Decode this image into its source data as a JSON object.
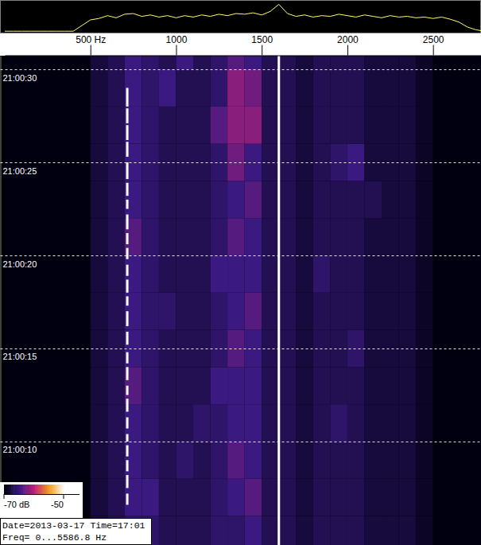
{
  "chart_data": {
    "type": "spectrogram",
    "xlim": [
      0,
      2780
    ],
    "xticks": [
      {
        "value": 500,
        "label": "500 Hz"
      },
      1000,
      1500,
      2000,
      2500
    ],
    "ylim": [
      4.44,
      30.73
    ],
    "yticks": [
      {
        "value": 10,
        "label": "21:00:10"
      },
      {
        "value": 15,
        "label": "21:00:15"
      },
      {
        "value": 20,
        "label": "21:00:20"
      },
      {
        "value": 25,
        "label": "21:00:25"
      },
      {
        "value": 30,
        "label": "21:00:30"
      }
    ],
    "grid": true,
    "colorbar": {
      "range": [
        -70,
        -50
      ],
      "ticks": [
        {
          "value": -70,
          "label": "-70 dB"
        },
        -50
      ]
    },
    "annotations": [
      "Date=2013-03-17 Time=17:01",
      "Freq= 0...5586.8 Hz"
    ],
    "spectrum": {
      "color": "#ffff60",
      "ylim": [
        -90,
        -45
      ],
      "x": [
        0,
        50,
        100,
        150,
        200,
        250,
        300,
        350,
        400,
        450,
        500,
        550,
        600,
        650,
        700,
        750,
        800,
        850,
        900,
        950,
        1000,
        1050,
        1100,
        1150,
        1200,
        1250,
        1300,
        1350,
        1400,
        1450,
        1500,
        1550,
        1600,
        1650,
        1700,
        1750,
        1800,
        1850,
        1900,
        1950,
        2000,
        2050,
        2100,
        2150,
        2200,
        2250,
        2300,
        2350,
        2400,
        2450,
        2500,
        2550,
        2600,
        2650,
        2700,
        2750,
        2800
      ],
      "values": [
        -88,
        -88,
        -88,
        -88,
        -88,
        -88,
        -88,
        -88,
        -88,
        -80,
        -72,
        -70,
        -66,
        -69,
        -64,
        -63,
        -67,
        -65,
        -68,
        -66,
        -69,
        -66,
        -68,
        -65,
        -67,
        -64,
        -66,
        -63,
        -64,
        -62,
        -65,
        -60,
        -50,
        -63,
        -67,
        -65,
        -68,
        -66,
        -67,
        -64,
        -66,
        -68,
        -65,
        -67,
        -69,
        -66,
        -68,
        -67,
        -69,
        -68,
        -70,
        -68,
        -71,
        -75,
        -82,
        -86,
        -88
      ]
    },
    "cells": {
      "frequency_edges": [
        0,
        100,
        200,
        300,
        400,
        500,
        600,
        700,
        800,
        900,
        1000,
        1100,
        1200,
        1300,
        1400,
        1500,
        1600,
        1700,
        1800,
        1900,
        2000,
        2100,
        2200,
        2300,
        2400,
        2500,
        2600,
        2700,
        2800
      ],
      "time_edges": [
        4,
        6,
        8,
        10,
        12,
        14,
        16,
        18,
        20,
        22,
        24,
        26,
        28,
        30,
        32
      ],
      "values": [
        [
          -85,
          -85,
          -85,
          -85,
          -72,
          -68,
          -67,
          -66,
          -66,
          -67,
          -67,
          -67,
          -66,
          -66,
          -65,
          -67,
          -67,
          -68,
          -67,
          -67,
          -67,
          -68,
          -68,
          -68,
          -69,
          -70,
          -75,
          -85
        ],
        [
          -85,
          -85,
          -85,
          -85,
          -72,
          -68,
          -67,
          -65,
          -65,
          -67,
          -67,
          -67,
          -66,
          -65,
          -64,
          -67,
          -67,
          -68,
          -67,
          -67,
          -67,
          -68,
          -68,
          -68,
          -69,
          -70,
          -75,
          -85
        ],
        [
          -85,
          -85,
          -85,
          -85,
          -72,
          -68,
          -67,
          -65,
          -66,
          -67,
          -66,
          -67,
          -66,
          -64,
          -65,
          -67,
          -67,
          -68,
          -67,
          -67,
          -67,
          -68,
          -68,
          -68,
          -69,
          -70,
          -75,
          -85
        ],
        [
          -85,
          -85,
          -85,
          -85,
          -72,
          -68,
          -67,
          -65,
          -66,
          -67,
          -67,
          -66,
          -66,
          -65,
          -65,
          -67,
          -67,
          -68,
          -67,
          -66,
          -67,
          -68,
          -68,
          -68,
          -69,
          -70,
          -75,
          -85
        ],
        [
          -85,
          -85,
          -85,
          -85,
          -72,
          -68,
          -67,
          -64,
          -66,
          -67,
          -67,
          -67,
          -65,
          -65,
          -65,
          -67,
          -67,
          -68,
          -67,
          -67,
          -67,
          -68,
          -68,
          -68,
          -69,
          -70,
          -75,
          -85
        ],
        [
          -85,
          -85,
          -85,
          -85,
          -72,
          -68,
          -67,
          -65,
          -66,
          -67,
          -67,
          -67,
          -66,
          -64,
          -65,
          -67,
          -67,
          -68,
          -67,
          -67,
          -66,
          -68,
          -68,
          -68,
          -69,
          -70,
          -75,
          -85
        ],
        [
          -85,
          -85,
          -85,
          -85,
          -72,
          -68,
          -67,
          -65,
          -66,
          -66,
          -67,
          -67,
          -66,
          -65,
          -64,
          -67,
          -67,
          -68,
          -67,
          -67,
          -67,
          -68,
          -68,
          -68,
          -69,
          -70,
          -75,
          -85
        ],
        [
          -85,
          -85,
          -85,
          -85,
          -72,
          -68,
          -67,
          -65,
          -66,
          -67,
          -67,
          -67,
          -65,
          -65,
          -65,
          -67,
          -67,
          -68,
          -66,
          -67,
          -67,
          -68,
          -68,
          -68,
          -69,
          -70,
          -75,
          -85
        ],
        [
          -85,
          -85,
          -85,
          -85,
          -72,
          -68,
          -67,
          -64,
          -66,
          -67,
          -67,
          -67,
          -66,
          -64,
          -65,
          -67,
          -67,
          -68,
          -67,
          -67,
          -67,
          -68,
          -68,
          -68,
          -69,
          -70,
          -75,
          -85
        ],
        [
          -85,
          -85,
          -85,
          -85,
          -72,
          -68,
          -67,
          -65,
          -66,
          -67,
          -67,
          -67,
          -66,
          -65,
          -64,
          -67,
          -67,
          -68,
          -67,
          -67,
          -67,
          -67,
          -68,
          -68,
          -69,
          -70,
          -75,
          -85
        ],
        [
          -85,
          -85,
          -85,
          -85,
          -72,
          -68,
          -67,
          -65,
          -66,
          -67,
          -67,
          -67,
          -66,
          -63,
          -65,
          -67,
          -67,
          -68,
          -67,
          -66,
          -65,
          -68,
          -68,
          -68,
          -69,
          -70,
          -75,
          -85
        ],
        [
          -85,
          -85,
          -85,
          -85,
          -72,
          -68,
          -67,
          -65,
          -66,
          -67,
          -67,
          -67,
          -64,
          -62,
          -62,
          -67,
          -67,
          -68,
          -67,
          -67,
          -67,
          -68,
          -68,
          -68,
          -69,
          -70,
          -75,
          -85
        ],
        [
          -85,
          -85,
          -85,
          -85,
          -72,
          -68,
          -67,
          -65,
          -66,
          -65,
          -67,
          -67,
          -66,
          -62,
          -63,
          -67,
          -67,
          -68,
          -67,
          -67,
          -67,
          -68,
          -68,
          -68,
          -69,
          -70,
          -75,
          -85
        ],
        [
          -85,
          -85,
          -85,
          -85,
          -72,
          -68,
          -67,
          -65,
          -66,
          -67,
          -65,
          -67,
          -66,
          -64,
          -65,
          -67,
          -67,
          -68,
          -67,
          -67,
          -67,
          -68,
          -68,
          -68,
          -69,
          -70,
          -75,
          -85
        ]
      ]
    },
    "tones": [
      {
        "frequency": 1600,
        "level": -50,
        "segments": [
          [
            4,
            31
          ]
        ]
      },
      {
        "frequency": 715,
        "level": -50,
        "segments": [
          [
            6.6,
            7.2
          ],
          [
            7.5,
            8.2
          ],
          [
            8.4,
            9.0
          ],
          [
            9.2,
            9.8
          ],
          [
            10.0,
            10.4
          ],
          [
            10.7,
            11.3
          ],
          [
            11.6,
            12.3
          ],
          [
            12.5,
            13.0
          ],
          [
            13.3,
            14.0
          ],
          [
            14.2,
            14.8
          ],
          [
            15.2,
            15.9
          ],
          [
            16.2,
            17.0
          ],
          [
            17.3,
            17.8
          ],
          [
            18.0,
            18.7
          ],
          [
            18.9,
            19.5
          ],
          [
            19.8,
            20.4
          ],
          [
            20.6,
            21.2
          ],
          [
            21.4,
            22.2
          ],
          [
            22.5,
            23.0
          ],
          [
            23.2,
            23.9
          ],
          [
            24.1,
            25.0
          ],
          [
            25.3,
            26.1
          ],
          [
            26.2,
            27.0
          ],
          [
            27.1,
            27.9
          ],
          [
            28.0,
            29.0
          ]
        ]
      }
    ]
  }
}
